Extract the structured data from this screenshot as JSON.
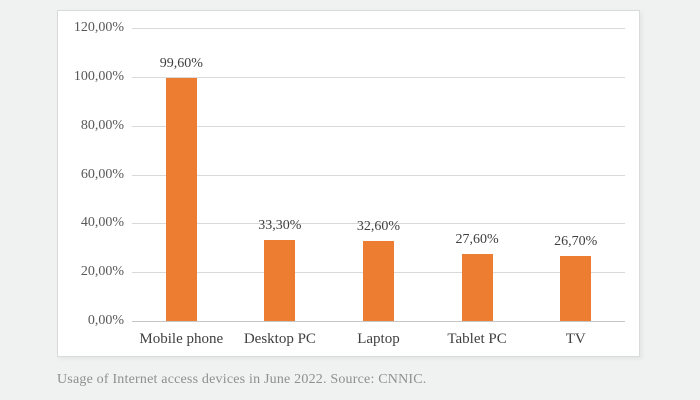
{
  "chart_data": {
    "type": "bar",
    "title": "",
    "categories": [
      "Mobile phone",
      "Desktop PC",
      "Laptop",
      "Tablet PC",
      "TV"
    ],
    "values": [
      99.6,
      33.3,
      32.6,
      27.6,
      26.7
    ],
    "value_labels": [
      "99,60%",
      "33,30%",
      "32,60%",
      "27,60%",
      "26,70%"
    ],
    "yticks": [
      {
        "value": 0,
        "label": "0,00%"
      },
      {
        "value": 20,
        "label": "20,00%"
      },
      {
        "value": 40,
        "label": "40,00%"
      },
      {
        "value": 60,
        "label": "60,00%"
      },
      {
        "value": 80,
        "label": "80,00%"
      },
      {
        "value": 100,
        "label": "100,00%"
      },
      {
        "value": 120,
        "label": "120,00%"
      }
    ],
    "ylim": [
      0,
      120
    ],
    "xlabel": "",
    "ylabel": "",
    "grid": true,
    "legend_position": "none",
    "bar_color": "#ED7D31"
  },
  "caption": {
    "text": "Usage of Internet access devices in June 2022. Source: CNNIC."
  }
}
